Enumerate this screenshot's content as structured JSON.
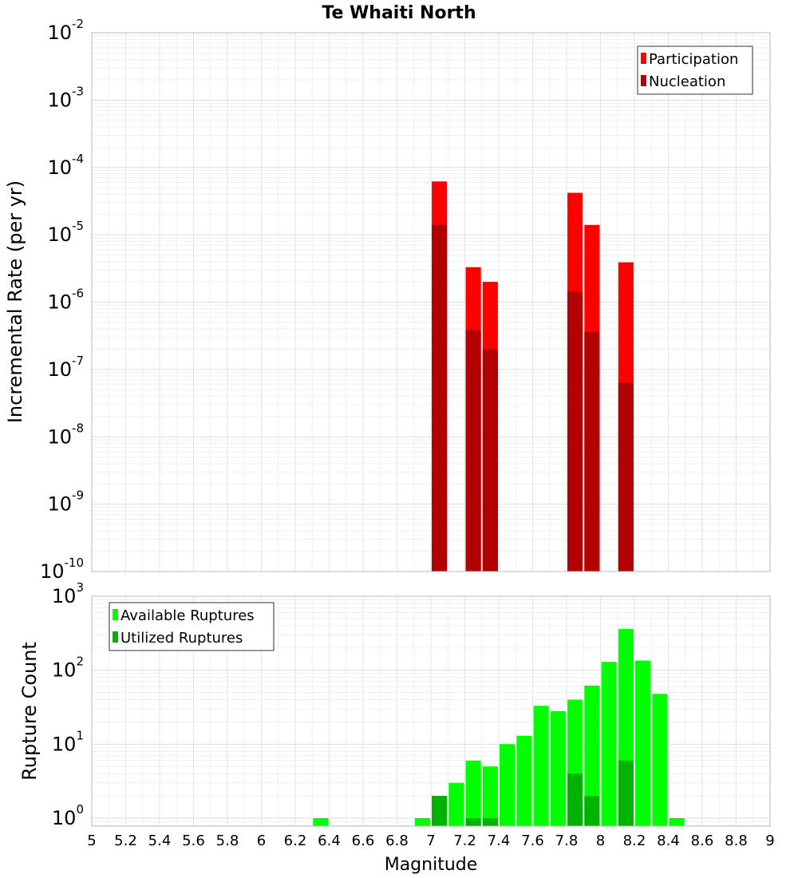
{
  "figure": {
    "title": "Te Whaiti North",
    "xlabel": "Magnitude"
  },
  "colors": {
    "participation": "#ff0000",
    "nucleation": "#b30000",
    "available": "#00ff00",
    "utilized": "#00b300",
    "grid": "#e8e8e8",
    "frame": "#bbbbbb"
  },
  "chart_data": [
    {
      "type": "bar",
      "ylabel": "Incremental Rate (per yr)",
      "yscale": "log",
      "ylim": [
        1e-10,
        0.01
      ],
      "xlim": [
        5,
        9
      ],
      "bar_width": 0.09,
      "legend_position": "top-right",
      "y_ticks": [
        {
          "base": "10",
          "exp": "-10",
          "value": 1e-10
        },
        {
          "base": "10",
          "exp": "-9",
          "value": 1e-09
        },
        {
          "base": "10",
          "exp": "-8",
          "value": 1e-08
        },
        {
          "base": "10",
          "exp": "-7",
          "value": 1e-07
        },
        {
          "base": "10",
          "exp": "-6",
          "value": 1e-06
        },
        {
          "base": "10",
          "exp": "-5",
          "value": 1e-05
        },
        {
          "base": "10",
          "exp": "-4",
          "value": 0.0001
        },
        {
          "base": "10",
          "exp": "-3",
          "value": 0.001
        },
        {
          "base": "10",
          "exp": "-2",
          "value": 0.01
        }
      ],
      "series": [
        {
          "name": "Participation",
          "color_key": "participation",
          "x": [
            7.05,
            7.25,
            7.35,
            7.85,
            7.95,
            8.15
          ],
          "values": [
            6.2e-05,
            3.3e-06,
            2e-06,
            4.2e-05,
            1.4e-05,
            3.9e-06
          ]
        },
        {
          "name": "Nucleation",
          "color_key": "nucleation",
          "x": [
            7.05,
            7.25,
            7.35,
            7.85,
            7.95,
            8.15
          ],
          "values": [
            1.4e-05,
            3.8e-07,
            2e-07,
            1.45e-06,
            3.6e-07,
            6.4e-08
          ]
        }
      ]
    },
    {
      "type": "bar",
      "ylabel": "Rupture Count",
      "yscale": "log",
      "ylim": [
        0.78,
        1000
      ],
      "xlim": [
        5,
        9
      ],
      "bar_width": 0.09,
      "legend_position": "top-left",
      "y_ticks": [
        {
          "base": "10",
          "exp": "0",
          "value": 1
        },
        {
          "base": "10",
          "exp": "1",
          "value": 10
        },
        {
          "base": "10",
          "exp": "2",
          "value": 100
        },
        {
          "base": "10",
          "exp": "3",
          "value": 1000
        }
      ],
      "series": [
        {
          "name": "Available Ruptures",
          "color_key": "available",
          "x": [
            6.35,
            6.95,
            7.05,
            7.15,
            7.25,
            7.35,
            7.45,
            7.55,
            7.65,
            7.75,
            7.85,
            7.95,
            8.05,
            8.15,
            8.25,
            8.35,
            8.45
          ],
          "values": [
            1,
            1,
            2,
            3,
            6,
            5,
            10,
            13,
            33,
            28,
            40,
            62,
            130,
            360,
            135,
            48,
            1
          ]
        },
        {
          "name": "Utilized Ruptures",
          "color_key": "utilized",
          "x": [
            7.05,
            7.25,
            7.35,
            7.85,
            7.95,
            8.15
          ],
          "values": [
            2,
            1,
            1,
            4,
            2,
            6
          ]
        }
      ]
    }
  ],
  "x_ticks": [
    "5",
    "5.2",
    "5.4",
    "5.6",
    "5.8",
    "6",
    "6.2",
    "6.4",
    "6.6",
    "6.8",
    "7",
    "7.2",
    "7.4",
    "7.6",
    "7.8",
    "8",
    "8.2",
    "8.4",
    "8.6",
    "8.8",
    "9"
  ]
}
